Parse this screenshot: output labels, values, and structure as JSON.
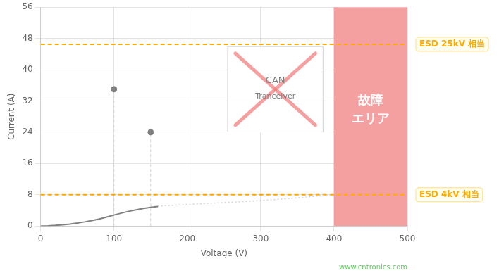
{
  "chart_data": {
    "type": "line",
    "x_label": "Voltage (V)",
    "y_label": "Current (A)",
    "xlim": [
      0,
      500
    ],
    "ylim": [
      0,
      56
    ],
    "xticks": [
      0,
      100,
      200,
      300,
      400,
      500
    ],
    "yticks": [
      0,
      8,
      16,
      24,
      32,
      40,
      48,
      56
    ],
    "grid": true,
    "series": [
      {
        "type": "line",
        "color": "gray",
        "line_style": "solid",
        "x": [
          0,
          10,
          20,
          30,
          40,
          50,
          60,
          70,
          80,
          90,
          100,
          110,
          120,
          130,
          140,
          150,
          160
        ],
        "values": [
          0,
          0.05,
          0.15,
          0.3,
          0.5,
          0.75,
          1.05,
          1.4,
          1.8,
          2.3,
          2.8,
          3.3,
          3.75,
          4.15,
          4.5,
          4.75,
          5.0
        ]
      },
      {
        "type": "line",
        "color": "lightgray",
        "line_style": "dotted",
        "x": [
          150,
          200,
          250,
          300,
          350,
          395
        ],
        "values": [
          5.0,
          5.5,
          6.0,
          6.5,
          7.2,
          8.0
        ]
      },
      {
        "type": "scatter",
        "color": "gray",
        "marker": "circle",
        "x": [
          100,
          150
        ],
        "values": [
          35,
          24
        ]
      }
    ],
    "annotations": [
      {
        "type": "hline",
        "y": 46.5,
        "text": "ESD 25kV 相当",
        "color": "#ffaa00",
        "line_style": "dashed"
      },
      {
        "type": "hline",
        "y": 8.0,
        "text": "ESD 4kV 相当",
        "color": "#ffaa00",
        "line_style": "dashed"
      },
      {
        "type": "region",
        "x_from": 400,
        "color": "#f5a0a0",
        "text": [
          "故障",
          "エリア"
        ],
        "text_color": "white"
      },
      {
        "type": "box",
        "text": [
          "CAN",
          "Tranceiver"
        ],
        "color": "#f08080",
        "text_color": "gray"
      },
      {
        "type": "note",
        "text": "www.cntronics.com",
        "color": "#66cc66"
      }
    ]
  }
}
